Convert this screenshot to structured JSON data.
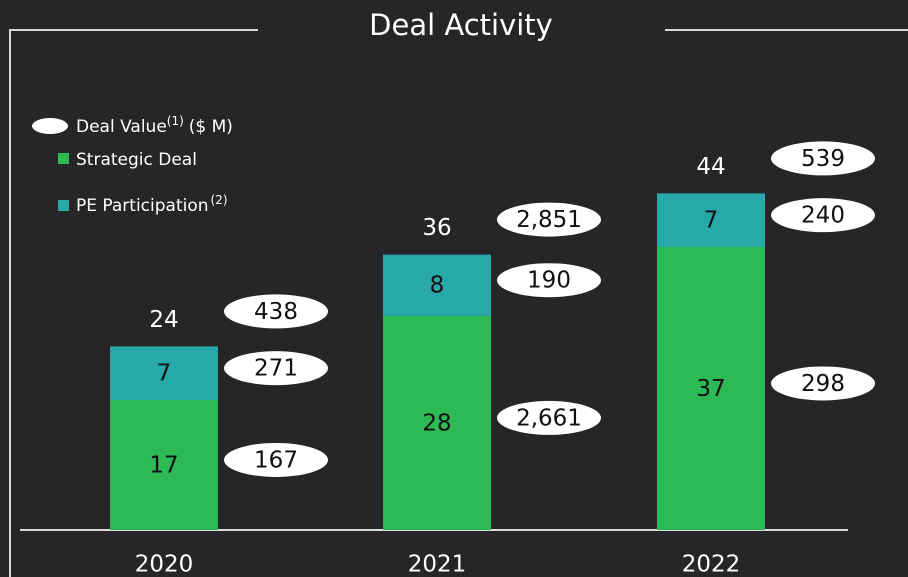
{
  "chart_data": {
    "type": "stacked_bar",
    "title": "Deal Activity",
    "categories": [
      "2020",
      "2021",
      "2022"
    ],
    "series": [
      {
        "name": "Strategic Deal",
        "color": "#2dba55",
        "values": [
          17,
          28,
          37
        ],
        "deal_values": [
          167,
          2661,
          298
        ],
        "deal_value_labels": [
          "167",
          "2,661",
          "298"
        ]
      },
      {
        "name": "PE Participation",
        "note": "(2)",
        "color": "#27a9a9",
        "values": [
          7,
          8,
          7
        ],
        "deal_values": [
          271,
          190,
          240
        ],
        "deal_value_labels": [
          "271",
          "190",
          "240"
        ]
      }
    ],
    "totals": [
      24,
      36,
      44
    ],
    "total_deal_values": [
      438,
      2851,
      539
    ],
    "total_deal_value_labels": [
      "438",
      "2,851",
      "539"
    ],
    "deal_value_legend": {
      "name": "Deal Value",
      "note": "(1)",
      "unit": "($ M)"
    }
  }
}
